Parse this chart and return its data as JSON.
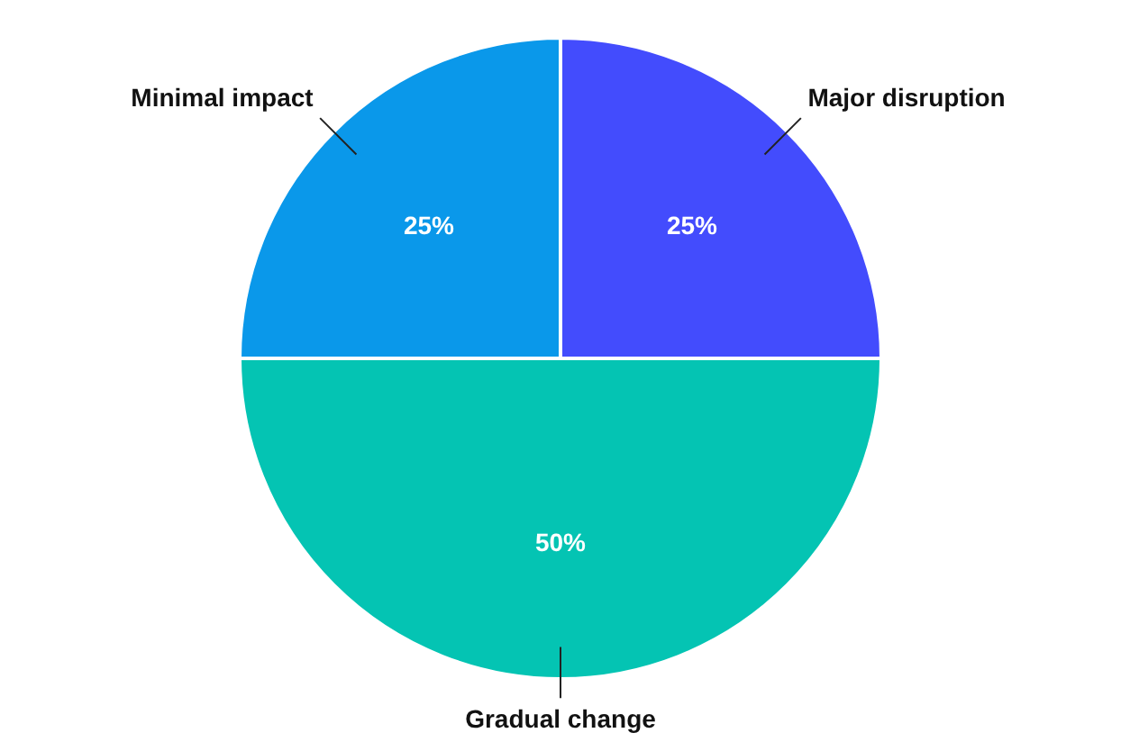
{
  "chart_data": {
    "type": "pie",
    "categories": [
      "Major disruption",
      "Gradual change",
      "Minimal impact"
    ],
    "values": [
      25,
      50,
      25
    ],
    "colors": [
      "#434cfd",
      "#04c4b3",
      "#0a98ea"
    ],
    "value_labels": [
      "25%",
      "50%",
      "25%"
    ]
  }
}
